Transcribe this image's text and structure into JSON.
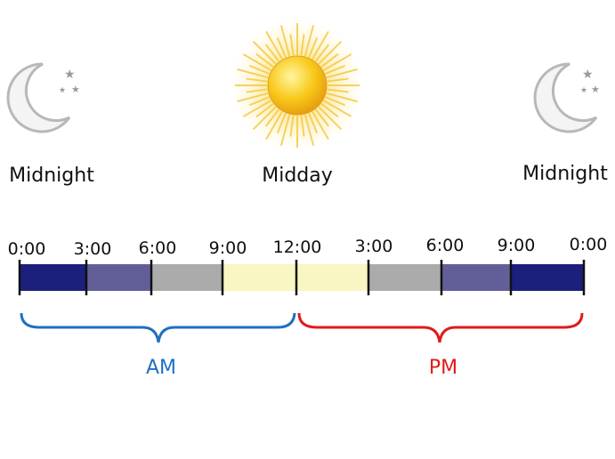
{
  "top_labels": [
    "Midnight",
    "Midday",
    "Midnight"
  ],
  "timeline": {
    "ticks": [
      "0:00",
      "3:00",
      "6:00",
      "9:00",
      "12:00",
      "3:00",
      "6:00",
      "9:00",
      "0:00"
    ]
  },
  "periods": [
    "AM",
    "PM"
  ]
}
